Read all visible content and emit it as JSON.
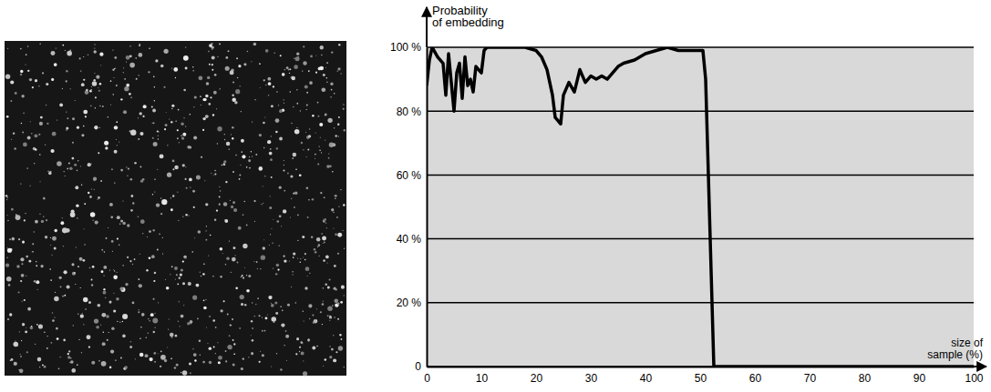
{
  "chart_data": {
    "type": "line",
    "ylabel": "Probability of embedding",
    "xlabel": "size of sample (%)",
    "x": [
      0,
      0.5,
      1,
      2,
      3,
      3.5,
      4,
      5,
      5.5,
      6,
      6.5,
      7,
      7.5,
      8,
      8.5,
      9,
      10,
      10.5,
      11,
      12,
      15,
      18,
      20,
      21,
      22,
      23,
      23.5,
      24,
      24.5,
      25,
      26,
      27,
      28,
      29,
      30,
      31,
      32,
      33,
      34,
      35,
      36,
      38,
      40,
      42,
      44,
      46,
      48,
      50,
      50.5,
      51,
      51.5,
      52,
      52.5,
      53,
      60,
      70,
      80,
      90,
      100
    ],
    "values": [
      88,
      96,
      100,
      97,
      95,
      85,
      98,
      80,
      92,
      95,
      84,
      97,
      88,
      90,
      86,
      94,
      92,
      99,
      100,
      100,
      100,
      100,
      99,
      97,
      93,
      85,
      78,
      77,
      76,
      85,
      89,
      86,
      93,
      89,
      91,
      90,
      91,
      90,
      92,
      94,
      95,
      96,
      98,
      99,
      100,
      99,
      99,
      99,
      99,
      90,
      60,
      30,
      0,
      0,
      0,
      0,
      0,
      0,
      0
    ],
    "color": "#000000",
    "xlim": [
      0,
      100
    ],
    "ylim": [
      0,
      100
    ],
    "xticks": [
      0,
      10,
      20,
      30,
      40,
      50,
      60,
      70,
      80,
      90,
      100
    ],
    "yticks": [
      0,
      {
        "value": 20,
        "label": "20 %"
      },
      {
        "value": 40,
        "label": "40 %"
      },
      {
        "value": 60,
        "label": "60 %"
      },
      {
        "value": 80,
        "label": "80 %"
      },
      {
        "value": 100,
        "label": "100 %"
      }
    ],
    "grid": true
  }
}
